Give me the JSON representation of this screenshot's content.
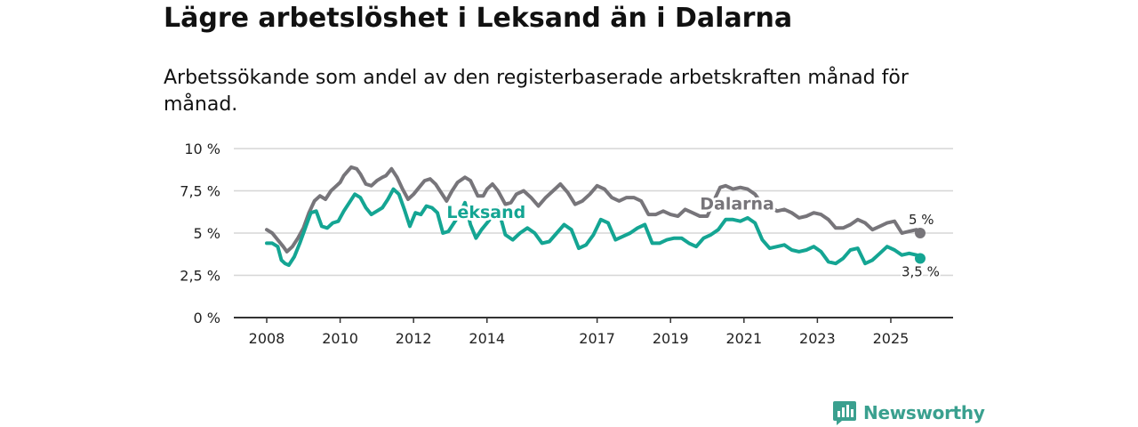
{
  "header": {
    "title": "Lägre arbetslöshet i Leksand än i Dalarna",
    "subtitle": "Arbetssökande som andel av den registerbaserade arbetskraften månad för månad."
  },
  "brand": {
    "name": "Newsworthy"
  },
  "chart_data": {
    "type": "line",
    "title": "Lägre arbetslöshet i Leksand än i Dalarna",
    "subtitle": "Arbetssökande som andel av den registerbaserade arbetskraften månad för månad.",
    "xlabel": "",
    "ylabel": "",
    "xlim": [
      2008,
      2026.4
    ],
    "ylim": [
      0,
      10
    ],
    "grid": true,
    "y_ticks": [
      {
        "value": 0,
        "label": "0 %"
      },
      {
        "value": 2.5,
        "label": "2,5 %"
      },
      {
        "value": 5,
        "label": "5 %"
      },
      {
        "value": 7.5,
        "label": "7,5 %"
      },
      {
        "value": 10,
        "label": "10 %"
      }
    ],
    "x_ticks": [
      {
        "value": 2008,
        "label": "2008"
      },
      {
        "value": 2010,
        "label": "2010"
      },
      {
        "value": 2012,
        "label": "2012"
      },
      {
        "value": 2014,
        "label": "2014"
      },
      {
        "value": 2017,
        "label": "2017"
      },
      {
        "value": 2019,
        "label": "2019"
      },
      {
        "value": 2021,
        "label": "2021"
      },
      {
        "value": 2023,
        "label": "2023"
      },
      {
        "value": 2025,
        "label": "2025"
      }
    ],
    "series": [
      {
        "name": "Dalarna",
        "color": "#77757a",
        "label_at": [
          2019.8,
          6.4
        ],
        "end_label": "5 %",
        "x": [
          2008.0,
          2008.15,
          2008.3,
          2008.45,
          2008.55,
          2008.7,
          2008.85,
          2009.0,
          2009.15,
          2009.3,
          2009.45,
          2009.6,
          2009.75,
          2009.9,
          2010.0,
          2010.1,
          2010.3,
          2010.45,
          2010.55,
          2010.7,
          2010.85,
          2011.0,
          2011.15,
          2011.25,
          2011.4,
          2011.55,
          2011.7,
          2011.85,
          2012.0,
          2012.15,
          2012.3,
          2012.45,
          2012.6,
          2012.75,
          2012.9,
          2013.05,
          2013.2,
          2013.4,
          2013.55,
          2013.75,
          2013.9,
          2014.0,
          2014.15,
          2014.3,
          2014.5,
          2014.65,
          2014.8,
          2015.0,
          2015.2,
          2015.4,
          2015.6,
          2015.8,
          2016.0,
          2016.2,
          2016.4,
          2016.6,
          2016.8,
          2017.0,
          2017.2,
          2017.4,
          2017.6,
          2017.8,
          2018.0,
          2018.2,
          2018.4,
          2018.6,
          2018.8,
          2019.0,
          2019.2,
          2019.4,
          2019.6,
          2019.8,
          2020.0,
          2020.2,
          2020.35,
          2020.5,
          2020.7,
          2020.9,
          2021.1,
          2021.3,
          2021.5,
          2021.7,
          2021.9,
          2022.1,
          2022.3,
          2022.5,
          2022.7,
          2022.9,
          2023.1,
          2023.3,
          2023.5,
          2023.7,
          2023.9,
          2024.1,
          2024.3,
          2024.5,
          2024.7,
          2024.9,
          2025.1,
          2025.3,
          2025.5,
          2025.7,
          2025.8
        ],
        "values": [
          5.2,
          5.0,
          4.6,
          4.2,
          3.9,
          4.2,
          4.7,
          5.3,
          6.2,
          6.9,
          7.2,
          7.0,
          7.5,
          7.8,
          8.0,
          8.4,
          8.9,
          8.8,
          8.5,
          7.9,
          7.8,
          8.1,
          8.3,
          8.4,
          8.8,
          8.3,
          7.6,
          7.0,
          7.3,
          7.7,
          8.1,
          8.2,
          7.9,
          7.4,
          6.9,
          7.5,
          8.0,
          8.3,
          8.1,
          7.2,
          7.2,
          7.6,
          7.9,
          7.5,
          6.7,
          6.8,
          7.3,
          7.5,
          7.1,
          6.6,
          7.1,
          7.5,
          7.9,
          7.4,
          6.7,
          6.9,
          7.3,
          7.8,
          7.6,
          7.1,
          6.9,
          7.1,
          7.1,
          6.9,
          6.1,
          6.1,
          6.3,
          6.1,
          6.0,
          6.4,
          6.2,
          6.0,
          6.0,
          7.0,
          7.7,
          7.8,
          7.6,
          7.7,
          7.6,
          7.3,
          6.7,
          6.6,
          6.3,
          6.4,
          6.2,
          5.9,
          6.0,
          6.2,
          6.1,
          5.8,
          5.3,
          5.3,
          5.5,
          5.8,
          5.6,
          5.2,
          5.4,
          5.6,
          5.7,
          5.0,
          5.1,
          5.2,
          5.0
        ]
      },
      {
        "name": "Leksand",
        "color": "#14a593",
        "label_at": [
          2012.9,
          5.9
        ],
        "end_label": "3,5 %",
        "x": [
          2008.0,
          2008.15,
          2008.3,
          2008.4,
          2008.5,
          2008.6,
          2008.75,
          2008.9,
          2009.05,
          2009.2,
          2009.35,
          2009.5,
          2009.65,
          2009.8,
          2009.95,
          2010.1,
          2010.25,
          2010.4,
          2010.55,
          2010.7,
          2010.85,
          2011.0,
          2011.15,
          2011.3,
          2011.45,
          2011.6,
          2011.75,
          2011.9,
          2012.05,
          2012.2,
          2012.35,
          2012.5,
          2012.65,
          2012.8,
          2012.95,
          2013.1,
          2013.25,
          2013.4,
          2013.55,
          2013.7,
          2013.85,
          2014.0,
          2014.15,
          2014.3,
          2014.5,
          2014.7,
          2014.9,
          2015.1,
          2015.3,
          2015.5,
          2015.7,
          2015.9,
          2016.1,
          2016.3,
          2016.5,
          2016.7,
          2016.9,
          2017.1,
          2017.3,
          2017.5,
          2017.7,
          2017.9,
          2018.1,
          2018.3,
          2018.5,
          2018.7,
          2018.9,
          2019.1,
          2019.3,
          2019.5,
          2019.7,
          2019.9,
          2020.1,
          2020.3,
          2020.5,
          2020.7,
          2020.9,
          2021.1,
          2021.3,
          2021.5,
          2021.7,
          2021.9,
          2022.1,
          2022.3,
          2022.5,
          2022.7,
          2022.9,
          2023.1,
          2023.3,
          2023.5,
          2023.7,
          2023.9,
          2024.1,
          2024.3,
          2024.5,
          2024.7,
          2024.9,
          2025.1,
          2025.3,
          2025.5,
          2025.7,
          2025.8
        ],
        "values": [
          4.4,
          4.4,
          4.2,
          3.4,
          3.2,
          3.1,
          3.6,
          4.4,
          5.3,
          6.2,
          6.3,
          5.4,
          5.3,
          5.6,
          5.7,
          6.3,
          6.8,
          7.3,
          7.1,
          6.5,
          6.1,
          6.3,
          6.5,
          7.0,
          7.6,
          7.3,
          6.4,
          5.4,
          6.2,
          6.1,
          6.6,
          6.5,
          6.2,
          5.0,
          5.1,
          5.6,
          6.1,
          6.8,
          5.5,
          4.7,
          5.2,
          5.6,
          6.0,
          6.5,
          4.9,
          4.6,
          5.0,
          5.3,
          5.0,
          4.4,
          4.5,
          5.0,
          5.5,
          5.2,
          4.1,
          4.3,
          4.9,
          5.8,
          5.6,
          4.6,
          4.8,
          5.0,
          5.3,
          5.5,
          4.4,
          4.4,
          4.6,
          4.7,
          4.7,
          4.4,
          4.2,
          4.7,
          4.9,
          5.2,
          5.8,
          5.8,
          5.7,
          5.9,
          5.6,
          4.6,
          4.1,
          4.2,
          4.3,
          4.0,
          3.9,
          4.0,
          4.2,
          3.9,
          3.3,
          3.2,
          3.5,
          4.0,
          4.1,
          3.2,
          3.4,
          3.8,
          4.2,
          4.0,
          3.7,
          3.8,
          3.7,
          3.5
        ]
      }
    ]
  }
}
